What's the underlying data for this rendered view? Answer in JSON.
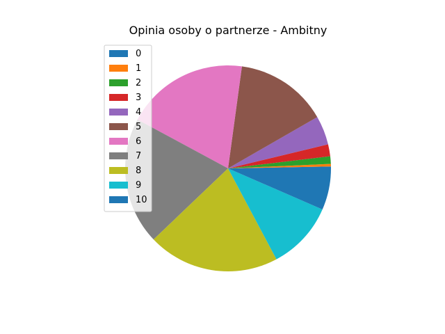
{
  "chart_data": {
    "type": "pie",
    "title": "Opinia osoby o partnerze - Ambitny",
    "categories": [
      "0",
      "1",
      "2",
      "3",
      "4",
      "5",
      "6",
      "7",
      "8",
      "9",
      "10"
    ],
    "values": [
      0.3,
      0.4,
      1.2,
      1.9,
      4.6,
      14.7,
      19.5,
      20.2,
      20.9,
      10.8,
      6.6
    ],
    "colors": [
      "#1f77b4",
      "#ff7f0e",
      "#2ca02c",
      "#d62728",
      "#9467bd",
      "#8c564b",
      "#e377c2",
      "#7f7f7f",
      "#bcbd22",
      "#17becf",
      "#1f77b4"
    ],
    "start_angle_deg": 0,
    "direction": "counterclockwise",
    "legend": {
      "placement": "upper-left",
      "entries": [
        "0",
        "1",
        "2",
        "3",
        "4",
        "5",
        "6",
        "7",
        "8",
        "9",
        "10"
      ]
    }
  }
}
